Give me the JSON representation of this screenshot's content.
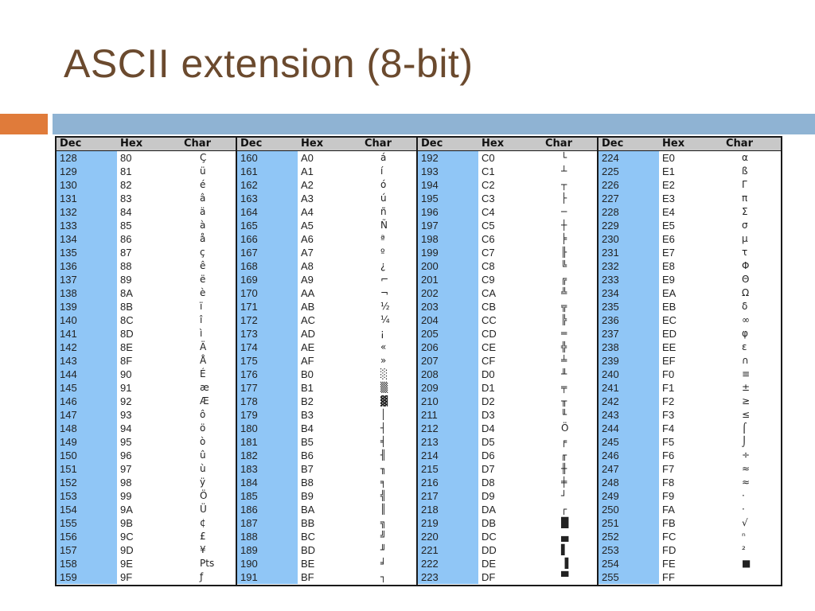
{
  "slide": {
    "title": "ASCII extension (8-bit)",
    "accent_colors": {
      "orange": "#e07b3a",
      "blue": "#8fb3d3",
      "dec_column": "#90c6f6"
    }
  },
  "table": {
    "headers": [
      "Dec",
      "Hex",
      "Char"
    ],
    "blocks": [
      {
        "rows": [
          [
            "128",
            "80",
            "Ç"
          ],
          [
            "129",
            "81",
            "ü"
          ],
          [
            "130",
            "82",
            "é"
          ],
          [
            "131",
            "83",
            "â"
          ],
          [
            "132",
            "84",
            "ä"
          ],
          [
            "133",
            "85",
            "à"
          ],
          [
            "134",
            "86",
            "å"
          ],
          [
            "135",
            "87",
            "ç"
          ],
          [
            "136",
            "88",
            "ê"
          ],
          [
            "137",
            "89",
            "ë"
          ],
          [
            "138",
            "8A",
            "è"
          ],
          [
            "139",
            "8B",
            "ï"
          ],
          [
            "140",
            "8C",
            "î"
          ],
          [
            "141",
            "8D",
            "ì"
          ],
          [
            "142",
            "8E",
            "Ä"
          ],
          [
            "143",
            "8F",
            "Å"
          ],
          [
            "144",
            "90",
            "É"
          ],
          [
            "145",
            "91",
            "æ"
          ],
          [
            "146",
            "92",
            "Æ"
          ],
          [
            "147",
            "93",
            "ô"
          ],
          [
            "148",
            "94",
            "ö"
          ],
          [
            "149",
            "95",
            "ò"
          ],
          [
            "150",
            "96",
            "û"
          ],
          [
            "151",
            "97",
            "ù"
          ],
          [
            "152",
            "98",
            "ÿ"
          ],
          [
            "153",
            "99",
            "Ö"
          ],
          [
            "154",
            "9A",
            "Ü"
          ],
          [
            "155",
            "9B",
            "¢"
          ],
          [
            "156",
            "9C",
            "£"
          ],
          [
            "157",
            "9D",
            "¥"
          ],
          [
            "158",
            "9E",
            "Pts"
          ],
          [
            "159",
            "9F",
            "ƒ"
          ]
        ]
      },
      {
        "rows": [
          [
            "160",
            "A0",
            "á"
          ],
          [
            "161",
            "A1",
            "í"
          ],
          [
            "162",
            "A2",
            "ó"
          ],
          [
            "163",
            "A3",
            "ú"
          ],
          [
            "164",
            "A4",
            "ñ"
          ],
          [
            "165",
            "A5",
            "Ñ"
          ],
          [
            "166",
            "A6",
            "ª"
          ],
          [
            "167",
            "A7",
            "º"
          ],
          [
            "168",
            "A8",
            "¿"
          ],
          [
            "169",
            "A9",
            "⌐"
          ],
          [
            "170",
            "AA",
            "¬"
          ],
          [
            "171",
            "AB",
            "½"
          ],
          [
            "172",
            "AC",
            "¼"
          ],
          [
            "173",
            "AD",
            "¡"
          ],
          [
            "174",
            "AE",
            "«"
          ],
          [
            "175",
            "AF",
            "»"
          ],
          [
            "176",
            "B0",
            "░"
          ],
          [
            "177",
            "B1",
            "▒"
          ],
          [
            "178",
            "B2",
            "▓"
          ],
          [
            "179",
            "B3",
            "│"
          ],
          [
            "180",
            "B4",
            "┤"
          ],
          [
            "181",
            "B5",
            "╡"
          ],
          [
            "182",
            "B6",
            "╢"
          ],
          [
            "183",
            "B7",
            "╖"
          ],
          [
            "184",
            "B8",
            "╕"
          ],
          [
            "185",
            "B9",
            "╣"
          ],
          [
            "186",
            "BA",
            "║"
          ],
          [
            "187",
            "BB",
            "╗"
          ],
          [
            "188",
            "BC",
            "╝"
          ],
          [
            "189",
            "BD",
            "╜"
          ],
          [
            "190",
            "BE",
            "╛"
          ],
          [
            "191",
            "BF",
            "┐"
          ]
        ]
      },
      {
        "rows": [
          [
            "192",
            "C0",
            "└"
          ],
          [
            "193",
            "C1",
            "┴"
          ],
          [
            "194",
            "C2",
            "┬"
          ],
          [
            "195",
            "C3",
            "├"
          ],
          [
            "196",
            "C4",
            "─"
          ],
          [
            "197",
            "C5",
            "┼"
          ],
          [
            "198",
            "C6",
            "╞"
          ],
          [
            "199",
            "C7",
            "╟"
          ],
          [
            "200",
            "C8",
            "╚"
          ],
          [
            "201",
            "C9",
            "╔"
          ],
          [
            "202",
            "CA",
            "╩"
          ],
          [
            "203",
            "CB",
            "╦"
          ],
          [
            "204",
            "CC",
            "╠"
          ],
          [
            "205",
            "CD",
            "═"
          ],
          [
            "206",
            "CE",
            "╬"
          ],
          [
            "207",
            "CF",
            "╧"
          ],
          [
            "208",
            "D0",
            "╨"
          ],
          [
            "209",
            "D1",
            "╤"
          ],
          [
            "210",
            "D2",
            "╥"
          ],
          [
            "211",
            "D3",
            "╙"
          ],
          [
            "212",
            "D4",
            "Ö"
          ],
          [
            "213",
            "D5",
            "╒"
          ],
          [
            "214",
            "D6",
            "╓"
          ],
          [
            "215",
            "D7",
            "╫"
          ],
          [
            "216",
            "D8",
            "╪"
          ],
          [
            "217",
            "D9",
            "┘"
          ],
          [
            "218",
            "DA",
            "┌"
          ],
          [
            "219",
            "DB",
            "█"
          ],
          [
            "220",
            "DC",
            "▄"
          ],
          [
            "221",
            "DD",
            "▌"
          ],
          [
            "222",
            "DE",
            "▐"
          ],
          [
            "223",
            "DF",
            "▀"
          ]
        ]
      },
      {
        "rows": [
          [
            "224",
            "E0",
            "α"
          ],
          [
            "225",
            "E1",
            "ß"
          ],
          [
            "226",
            "E2",
            "Γ"
          ],
          [
            "227",
            "E3",
            "π"
          ],
          [
            "228",
            "E4",
            "Σ"
          ],
          [
            "229",
            "E5",
            "σ"
          ],
          [
            "230",
            "E6",
            "µ"
          ],
          [
            "231",
            "E7",
            "τ"
          ],
          [
            "232",
            "E8",
            "Φ"
          ],
          [
            "233",
            "E9",
            "Θ"
          ],
          [
            "234",
            "EA",
            "Ω"
          ],
          [
            "235",
            "EB",
            "δ"
          ],
          [
            "236",
            "EC",
            "∞"
          ],
          [
            "237",
            "ED",
            "φ"
          ],
          [
            "238",
            "EE",
            "ε"
          ],
          [
            "239",
            "EF",
            "∩"
          ],
          [
            "240",
            "F0",
            "≡"
          ],
          [
            "241",
            "F1",
            "±"
          ],
          [
            "242",
            "F2",
            "≥"
          ],
          [
            "243",
            "F3",
            "≤"
          ],
          [
            "244",
            "F4",
            "⌠"
          ],
          [
            "245",
            "F5",
            "⌡"
          ],
          [
            "246",
            "F6",
            "÷"
          ],
          [
            "247",
            "F7",
            "≈"
          ],
          [
            "248",
            "F8",
            "≈"
          ],
          [
            "249",
            "F9",
            "·"
          ],
          [
            "250",
            "FA",
            "·"
          ],
          [
            "251",
            "FB",
            "√"
          ],
          [
            "252",
            "FC",
            "ⁿ"
          ],
          [
            "253",
            "FD",
            "²"
          ],
          [
            "254",
            "FE",
            "■"
          ],
          [
            "255",
            "FF",
            ""
          ]
        ]
      }
    ]
  }
}
